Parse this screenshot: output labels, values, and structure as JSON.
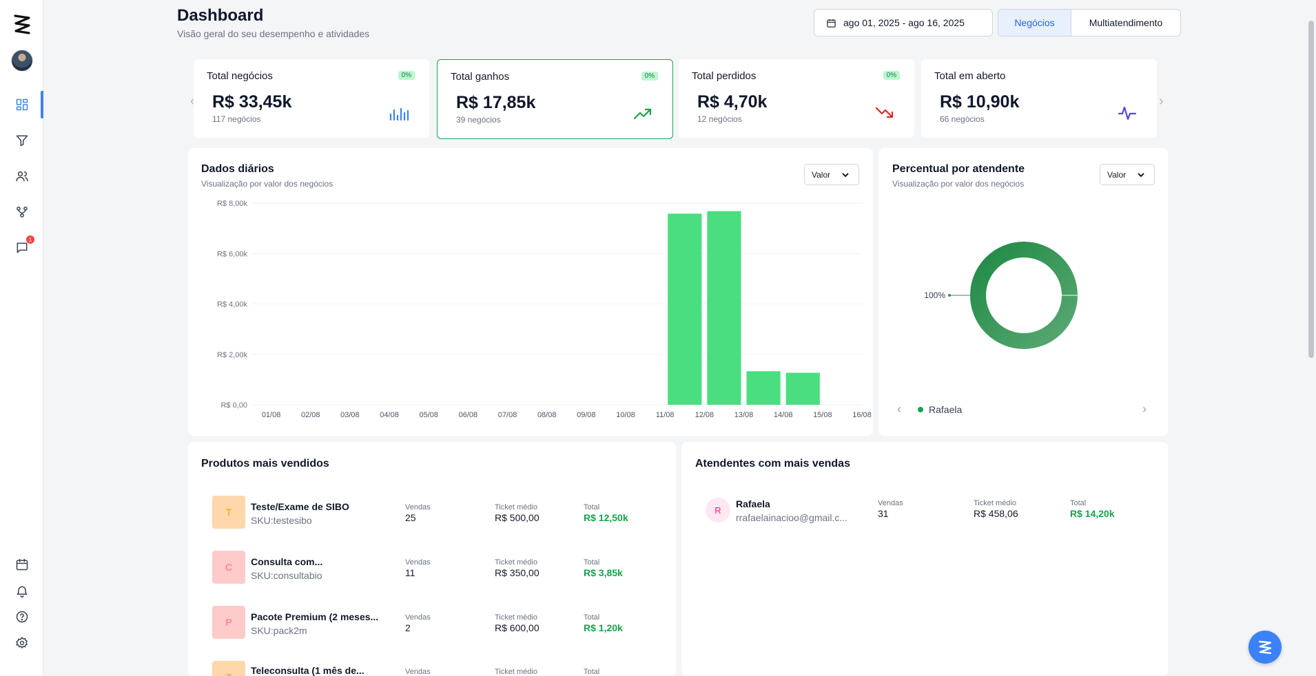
{
  "header": {
    "title": "Dashboard",
    "subtitle": "Visão geral do seu desempenho e atividades",
    "date_range": "ago 01, 2025 - ago 16, 2025",
    "tabs": [
      {
        "label": "Negócios",
        "active": true
      },
      {
        "label": "Multiatendimento",
        "active": false
      }
    ]
  },
  "sidebar": {
    "items": [
      "dashboard-icon",
      "funnel-icon",
      "users-icon",
      "workflow-icon",
      "chat-icon",
      "calendar-icon",
      "bell-icon",
      "help-icon",
      "settings-icon"
    ],
    "chat_badge": "1",
    "active_color": "#3b82f6"
  },
  "kpis": [
    {
      "label": "Total negócios",
      "badge": "0%",
      "value": "R$ 33,45k",
      "sub": "117 negócios",
      "icon": "bar-chart-icon",
      "color": "#3b82f6"
    },
    {
      "label": "Total ganhos",
      "badge": "0%",
      "value": "R$ 17,85k",
      "sub": "39 negócios",
      "icon": "trending-up-icon",
      "color": "#16a34a"
    },
    {
      "label": "Total perdidos",
      "badge": "0%",
      "value": "R$ 4,70k",
      "sub": "12 negócios",
      "icon": "trending-down-icon",
      "color": "#dc2626"
    },
    {
      "label": "Total em aberto",
      "badge": "",
      "value": "R$ 10,90k",
      "sub": "66 negócios",
      "icon": "activity-icon",
      "color": "#4f46e5"
    }
  ],
  "daily": {
    "title": "Dados diários",
    "subtitle": "Visualização por valor dos negócios",
    "select": "Valor"
  },
  "attendant_pct": {
    "title": "Percentual por atendente",
    "subtitle": "Visualização por valor dos negócios",
    "select": "Valor",
    "slice_label": "100%",
    "legend": "Rafaela"
  },
  "chart_data": [
    {
      "type": "bar",
      "categories": [
        "01/08",
        "02/08",
        "03/08",
        "04/08",
        "05/08",
        "06/08",
        "07/08",
        "08/08",
        "09/08",
        "10/08",
        "11/08",
        "12/08",
        "13/08",
        "14/08",
        "15/08",
        "16/08"
      ],
      "values": [
        0,
        0,
        0,
        0,
        0,
        0,
        0,
        0,
        0,
        0,
        7580,
        7680,
        1330,
        1270,
        0,
        0
      ],
      "bar_slots": [
        "11/08",
        "12/08",
        "13/08",
        "14/08"
      ],
      "yticks": [
        "R$ 0,00",
        "R$ 2,00k",
        "R$ 4,00k",
        "R$ 6,00k",
        "R$ 8,00k"
      ],
      "ylim": [
        0,
        8000
      ],
      "color": "#4ade80",
      "grid": true
    },
    {
      "type": "pie",
      "categories": [
        "Rafaela"
      ],
      "values": [
        100
      ],
      "color": "#2f8f52"
    }
  ],
  "products": {
    "title": "Produtos mais vendidos",
    "col_labels": {
      "sales": "Vendas",
      "ticket": "Ticket médio",
      "total": "Total"
    },
    "items": [
      {
        "initial": "T",
        "name": "Teste/Exame de SIBO",
        "sku": "SKU:testesibo",
        "sales": "25",
        "ticket": "R$ 500,00",
        "total": "R$ 12,50k",
        "bg": "#fed7aa",
        "fg": "#f59e0b"
      },
      {
        "initial": "C",
        "name": "Consulta com...",
        "sku": "SKU:consultabio",
        "sales": "11",
        "ticket": "R$ 350,00",
        "total": "R$ 3,85k",
        "bg": "#fecaca",
        "fg": "#f87171"
      },
      {
        "initial": "P",
        "name": "Pacote Premium (2 meses...",
        "sku": "SKU:pack2m",
        "sales": "2",
        "ticket": "R$ 600,00",
        "total": "R$ 1,20k",
        "bg": "#fecaca",
        "fg": "#f87171"
      },
      {
        "initial": "T",
        "name": "Teleconsulta (1 mês de...",
        "sku": "",
        "sales": "",
        "ticket": "",
        "total": "",
        "bg": "#fed7aa",
        "fg": "#f59e0b"
      }
    ]
  },
  "attendants": {
    "title": "Atendentes com mais vendas",
    "col_labels": {
      "sales": "Vendas",
      "ticket": "Ticket médio",
      "total": "Total"
    },
    "items": [
      {
        "initial": "R",
        "name": "Rafaela",
        "email": "rrafaelainacioo@gmail.c...",
        "sales": "31",
        "ticket": "R$ 458,06",
        "total": "R$ 14,20k"
      }
    ]
  }
}
